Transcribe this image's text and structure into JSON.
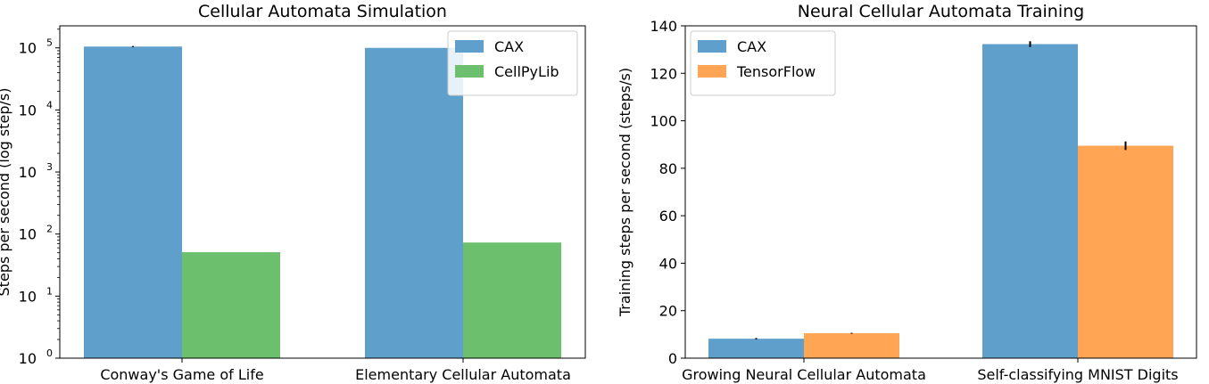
{
  "chart_data": [
    {
      "type": "bar",
      "title": "Cellular Automata Simulation",
      "xlabel": "",
      "ylabel": "Steps per second (log step/s)",
      "yscale": "log",
      "ylim": [
        1,
        100000
      ],
      "categories": [
        "Conway's Game of Life",
        "Elementary Cellular Automata"
      ],
      "series": [
        {
          "name": "CAX",
          "values": [
            105000,
            100000
          ],
          "errors": [
            2000,
            0
          ],
          "color": "#5f9fcc"
        },
        {
          "name": "CellPyLib",
          "values": [
            51,
            73
          ],
          "errors": [
            0,
            0
          ],
          "color": "#6cbf6c"
        }
      ],
      "yticks": [
        {
          "base": "10",
          "exp": "0",
          "value": 1
        },
        {
          "base": "10",
          "exp": "1",
          "value": 10
        },
        {
          "base": "10",
          "exp": "2",
          "value": 100
        },
        {
          "base": "10",
          "exp": "3",
          "value": 1000
        },
        {
          "base": "10",
          "exp": "4",
          "value": 10000
        },
        {
          "base": "10",
          "exp": "5",
          "value": 100000
        }
      ],
      "legend_position": "top-right",
      "grid": false
    },
    {
      "type": "bar",
      "title": "Neural Cellular Automata Training",
      "xlabel": "",
      "ylabel": "Training steps per second (steps/s)",
      "yscale": "linear",
      "ylim": [
        0,
        140
      ],
      "categories": [
        "Growing Neural Cellular Automata",
        "Self-classifying MNIST Digits"
      ],
      "series": [
        {
          "name": "CAX",
          "values": [
            8.2,
            132.3
          ],
          "errors": [
            0.3,
            1.2
          ],
          "color": "#5f9fcc"
        },
        {
          "name": "TensorFlow",
          "values": [
            10.5,
            89.5
          ],
          "errors": [
            0.2,
            1.8
          ],
          "color": "#ffa554"
        }
      ],
      "yticks": [
        "0",
        "20",
        "40",
        "60",
        "80",
        "100",
        "120",
        "140"
      ],
      "legend_position": "top-left",
      "grid": false
    }
  ]
}
